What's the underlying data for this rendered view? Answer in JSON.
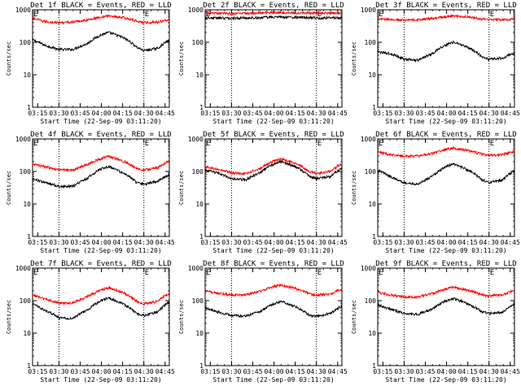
{
  "chart_data": [
    {
      "type": "line",
      "title": "Det 1f BLACK = Events, RED = LLD",
      "xlabel": "Start Time (22-Sep-09 03:11:20)",
      "ylabel": "Counts/sec",
      "yscale": "log",
      "ylim": [
        1,
        1000
      ],
      "xlim": [
        "03:11:20",
        "04:48:00"
      ],
      "x_ticks": [
        "03:15",
        "03:30",
        "03:45",
        "04:00",
        "04:15",
        "04:30",
        "04:45"
      ],
      "y_ticks": [
        "1",
        "10",
        "100",
        "1000"
      ],
      "markers": [
        {
          "time": "03:30",
          "label": ""
        },
        {
          "time": "04:30",
          "label": "E"
        }
      ],
      "corner_label": "E",
      "series": [
        {
          "color": "#000000",
          "x": [
            "03:11",
            "03:20",
            "03:30",
            "03:40",
            "03:50",
            "04:00",
            "04:05",
            "04:15",
            "04:25",
            "04:30",
            "04:40",
            "04:47"
          ],
          "values": [
            120,
            80,
            60,
            60,
            90,
            170,
            200,
            140,
            70,
            55,
            65,
            110
          ]
        },
        {
          "color": "#ff0000",
          "x": [
            "03:11",
            "03:20",
            "03:30",
            "03:40",
            "03:50",
            "04:00",
            "04:05",
            "04:15",
            "04:25",
            "04:30",
            "04:40",
            "04:47"
          ],
          "values": [
            550,
            430,
            400,
            420,
            480,
            600,
            650,
            580,
            450,
            400,
            420,
            500
          ]
        }
      ]
    },
    {
      "type": "line",
      "title": "Det 2f BLACK = Events, RED = LLD",
      "xlabel": "Start Time (22-Sep-09 03:11:20)",
      "ylabel": "Counts/sec",
      "yscale": "log",
      "ylim": [
        1,
        1000
      ],
      "xlim": [
        "03:11:20",
        "04:48:00"
      ],
      "x_ticks": [
        "03:15",
        "03:30",
        "03:45",
        "04:00",
        "04:15",
        "04:30",
        "04:45"
      ],
      "y_ticks": [
        "1",
        "10",
        "100",
        "1000"
      ],
      "markers": [
        {
          "time": "03:30",
          "label": ""
        },
        {
          "time": "04:30",
          "label": "E"
        }
      ],
      "corner_label": "E",
      "series": [
        {
          "color": "#000000",
          "x": [
            "03:11",
            "03:30",
            "03:45",
            "04:00",
            "04:15",
            "04:30",
            "04:47"
          ],
          "values": [
            560,
            550,
            560,
            600,
            580,
            560,
            570
          ]
        },
        {
          "color": "#ff0000",
          "x": [
            "03:11",
            "03:30",
            "03:45",
            "04:00",
            "04:15",
            "04:30",
            "04:47"
          ],
          "values": [
            780,
            770,
            780,
            830,
            800,
            780,
            790
          ]
        }
      ]
    },
    {
      "type": "line",
      "title": "Det 3f BLACK = Events, RED = LLD",
      "xlabel": "Start Time (22-Sep-09 03:11:20)",
      "ylabel": "Counts/sec",
      "yscale": "log",
      "ylim": [
        1,
        1000
      ],
      "xlim": [
        "03:11:20",
        "04:48:00"
      ],
      "x_ticks": [
        "03:15",
        "03:30",
        "03:45",
        "04:00",
        "04:15",
        "04:30",
        "04:45"
      ],
      "y_ticks": [
        "1",
        "10",
        "100",
        "1000"
      ],
      "markers": [
        {
          "time": "03:30",
          "label": ""
        },
        {
          "time": "04:30",
          "label": "E"
        }
      ],
      "corner_label": "E",
      "series": [
        {
          "color": "#000000",
          "x": [
            "03:11",
            "03:20",
            "03:30",
            "03:40",
            "03:50",
            "04:00",
            "04:05",
            "04:15",
            "04:25",
            "04:30",
            "04:40",
            "04:47"
          ],
          "values": [
            50,
            45,
            30,
            28,
            45,
            85,
            100,
            70,
            35,
            30,
            33,
            45
          ]
        },
        {
          "color": "#ff0000",
          "x": [
            "03:11",
            "03:20",
            "03:30",
            "03:40",
            "03:50",
            "04:00",
            "04:05",
            "04:15",
            "04:25",
            "04:30",
            "04:40",
            "04:47"
          ],
          "values": [
            520,
            500,
            480,
            490,
            540,
            620,
            650,
            600,
            520,
            500,
            490,
            520
          ]
        }
      ]
    },
    {
      "type": "line",
      "title": "Det 4f BLACK = Events, RED = LLD",
      "xlabel": "Start Time (22-Sep-09 03:11:20)",
      "ylabel": "Counts/sec",
      "yscale": "log",
      "ylim": [
        1,
        1000
      ],
      "xlim": [
        "03:11:20",
        "04:48:00"
      ],
      "x_ticks": [
        "03:15",
        "03:30",
        "03:45",
        "04:00",
        "04:15",
        "04:30",
        "04:45"
      ],
      "y_ticks": [
        "1",
        "10",
        "100",
        "1000"
      ],
      "markers": [
        {
          "time": "03:30",
          "label": ""
        },
        {
          "time": "04:30",
          "label": "E"
        }
      ],
      "corner_label": "E",
      "series": [
        {
          "color": "#000000",
          "x": [
            "03:11",
            "03:20",
            "03:30",
            "03:40",
            "03:50",
            "04:00",
            "04:05",
            "04:15",
            "04:25",
            "04:30",
            "04:40",
            "04:47"
          ],
          "values": [
            60,
            45,
            35,
            35,
            60,
            120,
            140,
            90,
            45,
            40,
            50,
            75
          ]
        },
        {
          "color": "#ff0000",
          "x": [
            "03:11",
            "03:20",
            "03:30",
            "03:40",
            "03:50",
            "04:00",
            "04:05",
            "04:15",
            "04:25",
            "04:30",
            "04:40",
            "04:47"
          ],
          "values": [
            170,
            140,
            110,
            110,
            160,
            250,
            290,
            210,
            120,
            110,
            130,
            200
          ]
        }
      ]
    },
    {
      "type": "line",
      "title": "Det 5f BLACK = Events, RED = LLD",
      "xlabel": "Start Time (22-Sep-09 03:11:20)",
      "ylabel": "Counts/sec",
      "yscale": "log",
      "ylim": [
        1,
        1000
      ],
      "xlim": [
        "03:11:20",
        "04:48:00"
      ],
      "x_ticks": [
        "03:15",
        "03:30",
        "03:45",
        "04:00",
        "04:15",
        "04:30",
        "04:45"
      ],
      "y_ticks": [
        "1",
        "10",
        "100",
        "1000"
      ],
      "markers": [
        {
          "time": "03:30",
          "label": ""
        },
        {
          "time": "04:30",
          "label": "E"
        }
      ],
      "corner_label": "E",
      "series": [
        {
          "color": "#000000",
          "x": [
            "03:11",
            "03:20",
            "03:30",
            "03:40",
            "03:50",
            "04:00",
            "04:05",
            "04:15",
            "04:25",
            "04:30",
            "04:40",
            "04:47"
          ],
          "values": [
            110,
            90,
            60,
            55,
            90,
            170,
            200,
            140,
            70,
            60,
            70,
            120
          ]
        },
        {
          "color": "#ff0000",
          "x": [
            "03:11",
            "03:20",
            "03:30",
            "03:40",
            "03:50",
            "04:00",
            "04:05",
            "04:15",
            "04:25",
            "04:30",
            "04:40",
            "04:47"
          ],
          "values": [
            140,
            120,
            90,
            85,
            120,
            210,
            240,
            180,
            100,
            85,
            100,
            160
          ]
        }
      ]
    },
    {
      "type": "line",
      "title": "Det 6f BLACK = Events, RED = LLD",
      "xlabel": "Start Time (22-Sep-09 03:11:20)",
      "ylabel": "Counts/sec",
      "yscale": "log",
      "ylim": [
        1,
        1000
      ],
      "xlim": [
        "03:11:20",
        "04:48:00"
      ],
      "x_ticks": [
        "03:15",
        "03:30",
        "03:45",
        "04:00",
        "04:15",
        "04:30",
        "04:45"
      ],
      "y_ticks": [
        "1",
        "10",
        "100",
        "1000"
      ],
      "markers": [
        {
          "time": "03:30",
          "label": ""
        },
        {
          "time": "04:30",
          "label": "E"
        }
      ],
      "corner_label": "E",
      "series": [
        {
          "color": "#000000",
          "x": [
            "03:11",
            "03:20",
            "03:30",
            "03:40",
            "03:50",
            "04:00",
            "04:05",
            "04:15",
            "04:25",
            "04:30",
            "04:40",
            "04:47"
          ],
          "values": [
            110,
            70,
            45,
            40,
            70,
            140,
            170,
            110,
            55,
            45,
            55,
            100
          ]
        },
        {
          "color": "#ff0000",
          "x": [
            "03:11",
            "03:20",
            "03:30",
            "03:40",
            "03:50",
            "04:00",
            "04:05",
            "04:15",
            "04:25",
            "04:30",
            "04:40",
            "04:47"
          ],
          "values": [
            400,
            330,
            300,
            300,
            360,
            480,
            520,
            440,
            340,
            320,
            330,
            400
          ]
        }
      ]
    },
    {
      "type": "line",
      "title": "Det 7f BLACK = Events, RED = LLD",
      "xlabel": "Start Time (22-Sep-09 03:11:20)",
      "ylabel": "Counts/sec",
      "yscale": "log",
      "ylim": [
        1,
        1000
      ],
      "xlim": [
        "03:11:20",
        "04:48:00"
      ],
      "x_ticks": [
        "03:15",
        "03:30",
        "03:45",
        "04:00",
        "04:15",
        "04:30",
        "04:45"
      ],
      "y_ticks": [
        "1",
        "10",
        "100",
        "1000"
      ],
      "markers": [
        {
          "time": "03:30",
          "label": ""
        },
        {
          "time": "04:30",
          "label": "E"
        }
      ],
      "corner_label": "E",
      "series": [
        {
          "color": "#000000",
          "x": [
            "03:11",
            "03:20",
            "03:30",
            "03:40",
            "03:50",
            "04:00",
            "04:05",
            "04:15",
            "04:25",
            "04:30",
            "04:40",
            "04:47"
          ],
          "values": [
            80,
            50,
            30,
            28,
            50,
            100,
            120,
            80,
            40,
            35,
            45,
            85
          ]
        },
        {
          "color": "#ff0000",
          "x": [
            "03:11",
            "03:20",
            "03:30",
            "03:40",
            "03:50",
            "04:00",
            "04:05",
            "04:15",
            "04:25",
            "04:30",
            "04:40",
            "04:47"
          ],
          "values": [
            150,
            110,
            85,
            85,
            130,
            210,
            250,
            180,
            95,
            80,
            95,
            160
          ]
        }
      ]
    },
    {
      "type": "line",
      "title": "Det 8f BLACK = Events, RED = LLD",
      "xlabel": "Start Time (22-Sep-09 03:11:20)",
      "ylabel": "Counts/sec",
      "yscale": "log",
      "ylim": [
        1,
        1000
      ],
      "xlim": [
        "03:11:20",
        "04:48:00"
      ],
      "x_ticks": [
        "03:15",
        "03:30",
        "03:45",
        "04:00",
        "04:15",
        "04:30",
        "04:45"
      ],
      "y_ticks": [
        "1",
        "10",
        "100",
        "1000"
      ],
      "markers": [
        {
          "time": "03:30",
          "label": ""
        },
        {
          "time": "04:30",
          "label": "E"
        }
      ],
      "corner_label": "E",
      "series": [
        {
          "color": "#000000",
          "x": [
            "03:11",
            "03:20",
            "03:30",
            "03:40",
            "03:50",
            "04:00",
            "04:05",
            "04:15",
            "04:25",
            "04:30",
            "04:40",
            "04:47"
          ],
          "values": [
            60,
            45,
            35,
            33,
            45,
            80,
            95,
            65,
            35,
            33,
            40,
            65
          ]
        },
        {
          "color": "#ff0000",
          "x": [
            "03:11",
            "03:20",
            "03:30",
            "03:40",
            "03:50",
            "04:00",
            "04:05",
            "04:15",
            "04:25",
            "04:30",
            "04:40",
            "04:47"
          ],
          "values": [
            200,
            170,
            150,
            150,
            190,
            270,
            300,
            240,
            160,
            150,
            160,
            220
          ]
        }
      ]
    },
    {
      "type": "line",
      "title": "Det 9f BLACK = Events, RED = LLD",
      "xlabel": "Start Time (22-Sep-09 03:11:20)",
      "ylabel": "Counts/sec",
      "yscale": "log",
      "ylim": [
        1,
        1000
      ],
      "xlim": [
        "03:11:20",
        "04:48:00"
      ],
      "x_ticks": [
        "03:15",
        "03:30",
        "03:45",
        "04:00",
        "04:15",
        "04:30",
        "04:45"
      ],
      "y_ticks": [
        "1",
        "10",
        "100",
        "1000"
      ],
      "markers": [
        {
          "time": "03:30",
          "label": ""
        },
        {
          "time": "04:30",
          "label": "E"
        }
      ],
      "corner_label": "E",
      "series": [
        {
          "color": "#000000",
          "x": [
            "03:11",
            "03:20",
            "03:30",
            "03:40",
            "03:50",
            "04:00",
            "04:05",
            "04:15",
            "04:25",
            "04:30",
            "04:40",
            "04:47"
          ],
          "values": [
            75,
            55,
            40,
            38,
            55,
            100,
            115,
            80,
            45,
            40,
            45,
            75
          ]
        },
        {
          "color": "#ff0000",
          "x": [
            "03:11",
            "03:20",
            "03:30",
            "03:40",
            "03:50",
            "04:00",
            "04:05",
            "04:15",
            "04:25",
            "04:30",
            "04:40",
            "04:47"
          ],
          "values": [
            180,
            150,
            130,
            130,
            165,
            230,
            260,
            210,
            150,
            140,
            150,
            200
          ]
        }
      ]
    }
  ]
}
